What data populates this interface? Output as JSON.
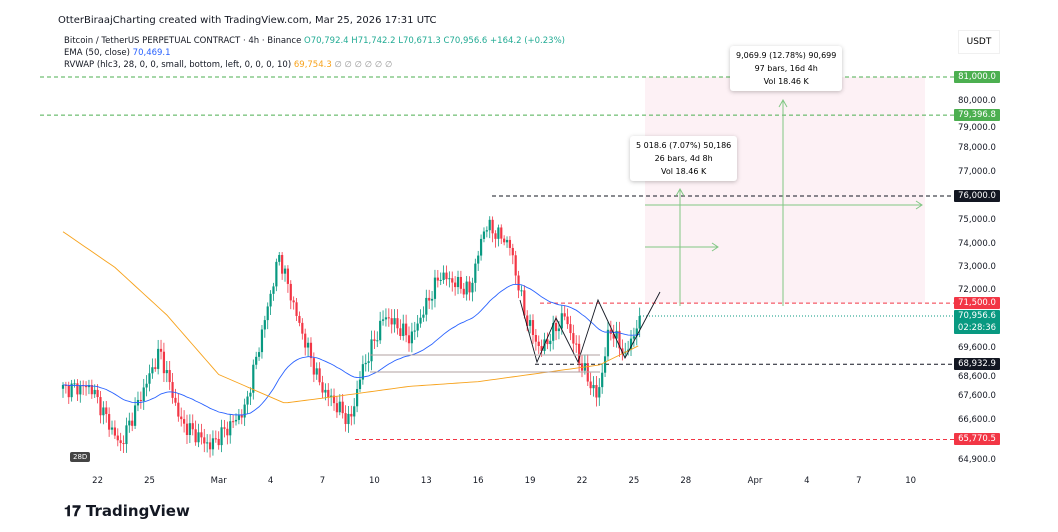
{
  "header": {
    "credit": "OtterBiraajCharting created with TradingView.com, Mar 25, 2026 17:31 UTC",
    "symbol": "Bitcoin / TetherUS PERPETUAL CONTRACT · 4h · Binance",
    "o": "O70,792.4",
    "h": "H71,742.2",
    "l": "L70,671.3",
    "c": "C70,956.6",
    "chg": "+164.2 (+0.23%)",
    "ema_label": "EMA (50, close)",
    "ema_value": "70,469.1",
    "rvwap_label": "RVWAP (hlc3, 28, 0, 0, small, bottom, left, 0, 0, 0, 10)",
    "rvwap_value": "69,754.3",
    "rvwap_extra": "∅ ∅ ∅ ∅ ∅ ∅"
  },
  "currency": "USDT",
  "badge": "28D",
  "logo": "TradingView",
  "measure": [
    {
      "l1": "9,069.9 (12.78%) 90,699",
      "l2": "97 bars, 16d 4h",
      "l3": "Vol 18.46 K"
    },
    {
      "l1": "5 018.6 (7.07%) 50,186",
      "l2": "26 bars, 4d 8h",
      "l3": "Vol 18.46 K"
    }
  ],
  "price_labels": [
    {
      "v": 81000,
      "t": "81,000.0",
      "c": "#4caf50"
    },
    {
      "v": 79396.8,
      "t": "79,396.8",
      "c": "#4caf50"
    },
    {
      "v": 76000,
      "t": "76,000.0",
      "c": "#131722"
    },
    {
      "v": 71500,
      "t": "71,500.0",
      "c": "#f23645"
    },
    {
      "v": 68932.9,
      "t": "68,932.9",
      "c": "#131722"
    },
    {
      "v": 65770.5,
      "t": "65,770.5",
      "c": "#f23645"
    }
  ],
  "last_price": {
    "t": "70,956.6",
    "timer": "02:28:36",
    "c": "#089981"
  },
  "chart_data": {
    "type": "candlestick",
    "title": "Bitcoin / TetherUS PERPETUAL CONTRACT 4h",
    "y_ticks": [
      "80,000.0",
      "79,000.0",
      "78,000.0",
      "77,000.0",
      "75,000.0",
      "74,000.0",
      "73,000.0",
      "72,000.0",
      "69,600.0",
      "68,600.0",
      "67,600.0",
      "66,600.0",
      "64,900.0"
    ],
    "y_tick_values": [
      80000,
      79000,
      78000,
      77000,
      75000,
      74000,
      73000,
      72000,
      69600,
      68600,
      67600,
      66600,
      64900
    ],
    "x_ticks": [
      "22",
      "25",
      "Mar",
      "4",
      "7",
      "10",
      "13",
      "16",
      "19",
      "22",
      "25",
      "28",
      "Apr",
      "4",
      "7",
      "10"
    ],
    "x_tick_days": [
      2,
      5,
      9,
      12,
      15,
      18,
      21,
      24,
      27,
      30,
      33,
      36,
      40,
      43,
      46,
      49
    ],
    "price_waypoints_day_price": [
      [
        0,
        67900
      ],
      [
        1.6,
        68000
      ],
      [
        3.3,
        65500
      ],
      [
        5.6,
        69500
      ],
      [
        6.8,
        66500
      ],
      [
        8.5,
        65500
      ],
      [
        10.5,
        67000
      ],
      [
        12.5,
        73500
      ],
      [
        13.7,
        70500
      ],
      [
        14.9,
        68000
      ],
      [
        16.6,
        66500
      ],
      [
        17.2,
        68500
      ],
      [
        18.6,
        71000
      ],
      [
        20.1,
        70000
      ],
      [
        21.8,
        72700
      ],
      [
        23.5,
        72000
      ],
      [
        24.4,
        74800
      ],
      [
        25.8,
        74000
      ],
      [
        26.7,
        71000
      ],
      [
        27.6,
        69500
      ],
      [
        29,
        71000
      ],
      [
        29.9,
        69000
      ],
      [
        30.9,
        67500
      ],
      [
        31.6,
        70500
      ],
      [
        32.5,
        69300
      ],
      [
        33.4,
        70957
      ]
    ],
    "rvwap_waypoints_day_price": [
      [
        0,
        74500
      ],
      [
        3,
        73000
      ],
      [
        6,
        71000
      ],
      [
        9,
        68500
      ],
      [
        12.8,
        67300
      ],
      [
        16,
        67600
      ],
      [
        20,
        68000
      ],
      [
        24,
        68200
      ],
      [
        28,
        68600
      ],
      [
        31,
        68900
      ],
      [
        33.4,
        69754
      ]
    ],
    "ylim": [
      64500,
      82000
    ]
  }
}
